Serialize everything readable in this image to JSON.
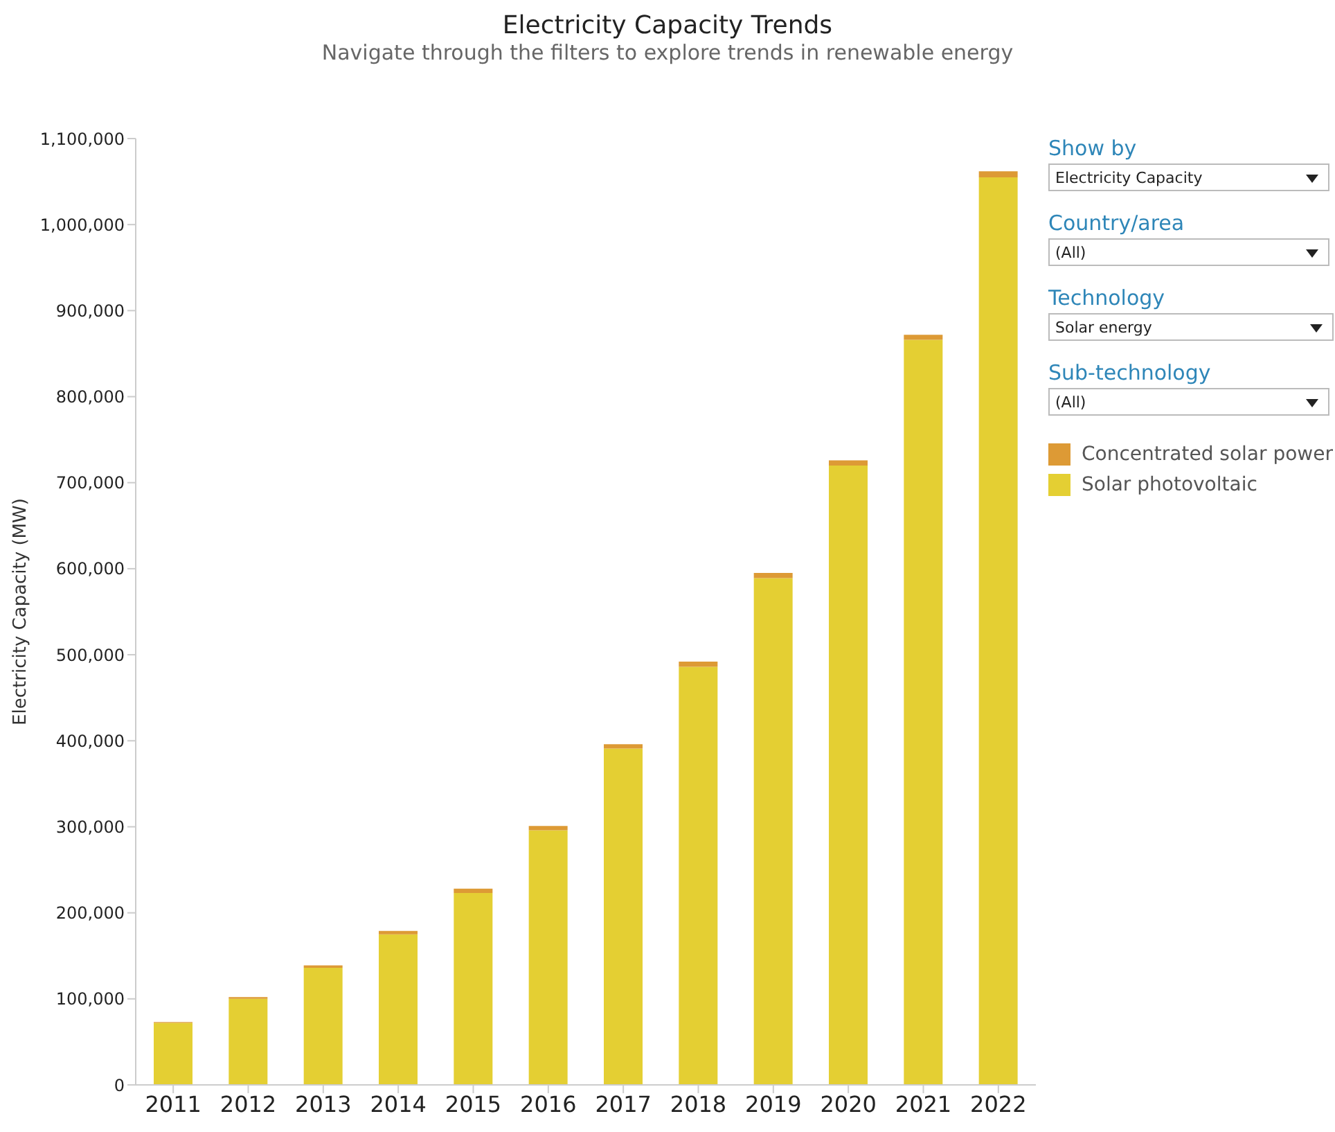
{
  "chart_data": {
    "type": "bar",
    "title": "Electricity Capacity Trends",
    "subtitle": "Navigate through the filters to explore trends in renewable energy",
    "ylabel": "Electricity Capacity (MW)",
    "categories": [
      "2011",
      "2012",
      "2013",
      "2014",
      "2015",
      "2016",
      "2017",
      "2018",
      "2019",
      "2020",
      "2021",
      "2022"
    ],
    "series": [
      {
        "name": "Solar photovoltaic",
        "color": "#e4cf33",
        "values": [
          72000,
          100000,
          136000,
          175000,
          223000,
          296000,
          391000,
          486000,
          589000,
          720000,
          866000,
          1055000
        ]
      },
      {
        "name": "Concentrated solar power",
        "color": "#dd9a35",
        "values": [
          1000,
          2000,
          3000,
          4000,
          5000,
          5000,
          5000,
          6000,
          6000,
          6000,
          6000,
          7000
        ]
      }
    ],
    "stacked": true,
    "ylim": [
      0,
      1100000
    ],
    "yticks": [
      0,
      {
        "value": 100000,
        "label": "100,000"
      },
      {
        "value": 200000,
        "label": "200,000"
      },
      {
        "value": 300000,
        "label": "300,000"
      },
      {
        "value": 400000,
        "label": "400,000"
      },
      {
        "value": 500000,
        "label": "500,000"
      },
      {
        "value": 600000,
        "label": "600,000"
      },
      {
        "value": 700000,
        "label": "700,000"
      },
      {
        "value": 800000,
        "label": "800,000"
      },
      {
        "value": 900000,
        "label": "900,000"
      },
      {
        "value": 1000000,
        "label": "1,000,000"
      },
      {
        "value": 1100000,
        "label": "1,100,000"
      }
    ],
    "grid": false,
    "legend": "right",
    "annotations": [
      "Show by",
      "Electricity Capacity",
      "Country/area",
      "(All)",
      "Technology",
      "Solar energy",
      "Sub-technology",
      "(All)"
    ]
  }
}
